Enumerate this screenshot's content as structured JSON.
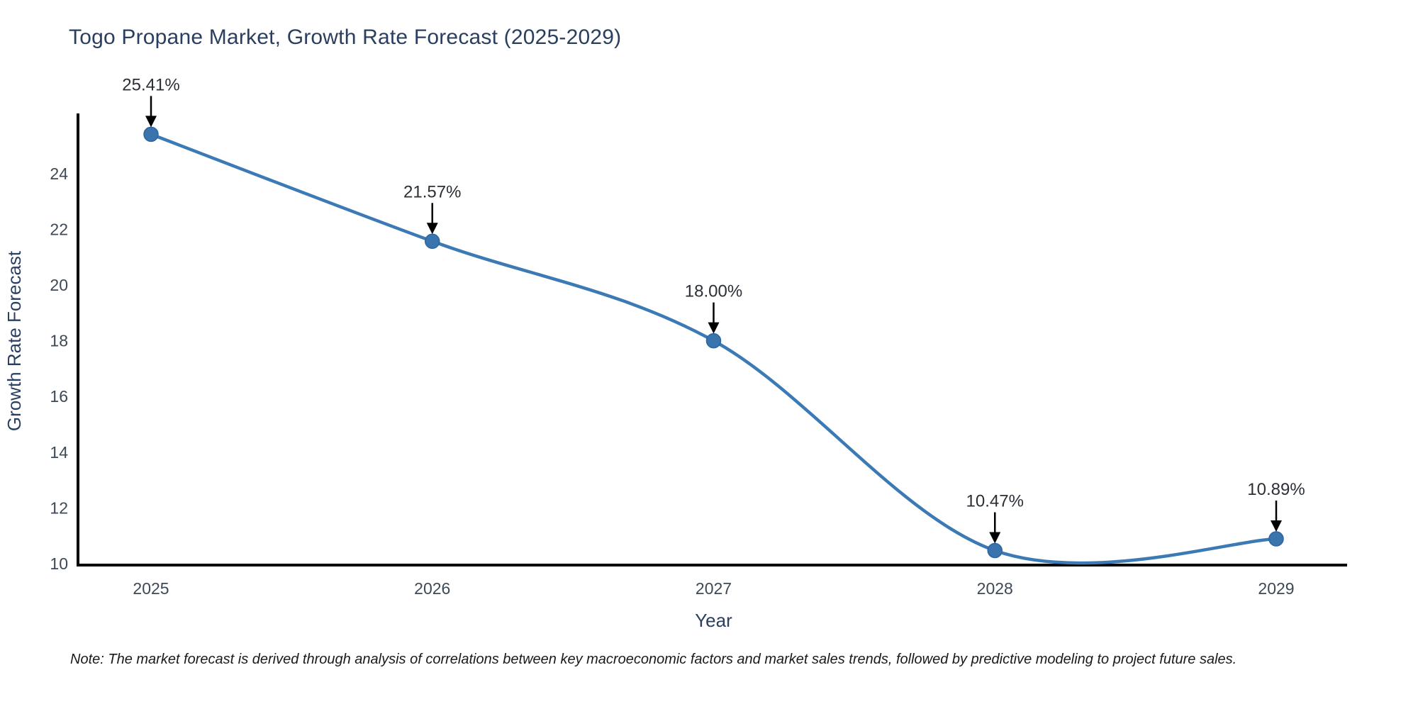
{
  "page": {
    "note": "Note: The market forecast is derived through analysis of correlations between key macroeconomic factors and market sales trends, followed by predictive modeling to project future sales."
  },
  "chart_data": {
    "type": "line",
    "title": "Togo Propane Market, Growth Rate Forecast (2025-2029)",
    "xlabel": "Year",
    "ylabel": "Growth Rate Forecast",
    "categories": [
      "2025",
      "2026",
      "2027",
      "2028",
      "2029"
    ],
    "values": [
      25.41,
      21.57,
      18.0,
      10.47,
      10.89
    ],
    "point_labels": [
      "25.41%",
      "21.57%",
      "18.00%",
      "10.47%",
      "10.89%"
    ],
    "series_name": "Growth Rate Forecast",
    "y_ticks": [
      10,
      12,
      14,
      16,
      18,
      20,
      22,
      24
    ],
    "ylim": [
      10,
      26.2
    ],
    "grid": false,
    "legend_position": "none",
    "line_shape": "spline",
    "marker": "circle",
    "annotation_arrows": true,
    "colors": {
      "line": "#3c7ab5",
      "marker_fill": "#3a74ad",
      "marker_edge": "#2d659f",
      "axis_line": "#000000",
      "axis_title_text": "#2a3f5f",
      "tick_text": "#3d4956",
      "annotation_text": "#2b2f36",
      "arrow": "#000000",
      "background": "#ffffff"
    }
  }
}
